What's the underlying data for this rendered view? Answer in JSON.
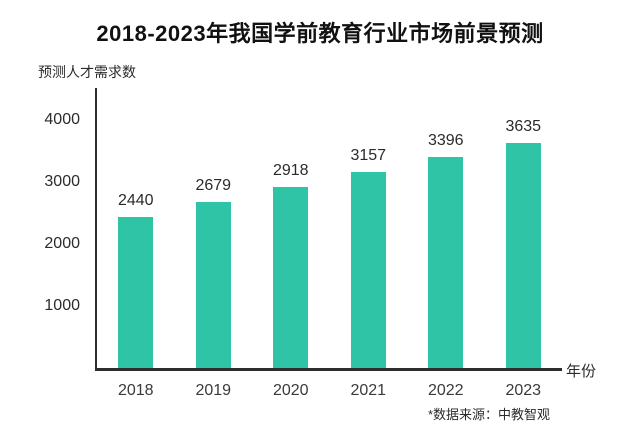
{
  "title": "2018-2023年我国学前教育行业市场前景预测",
  "y_axis_label": "预测人才需求数",
  "x_axis_label": "年份",
  "source_note": "*数据来源：中教智观",
  "colors": {
    "bar": "#2ec4a5",
    "axis": "#2d2d2d",
    "text": "#2b2b2b",
    "title": "#111111",
    "background": "#ffffff"
  },
  "chart_data": {
    "type": "bar",
    "title": "2018-2023年我国学前教育行业市场前景预测",
    "categories": [
      "2018",
      "2019",
      "2020",
      "2021",
      "2022",
      "2023"
    ],
    "values": [
      2440,
      2679,
      2918,
      3157,
      3396,
      3635
    ],
    "xlabel": "年份",
    "ylabel": "预测人才需求数",
    "ylim": [
      0,
      4500
    ],
    "yticks": [
      1000,
      2000,
      3000,
      4000
    ],
    "data_labels": true,
    "grid": false,
    "legend": false
  }
}
